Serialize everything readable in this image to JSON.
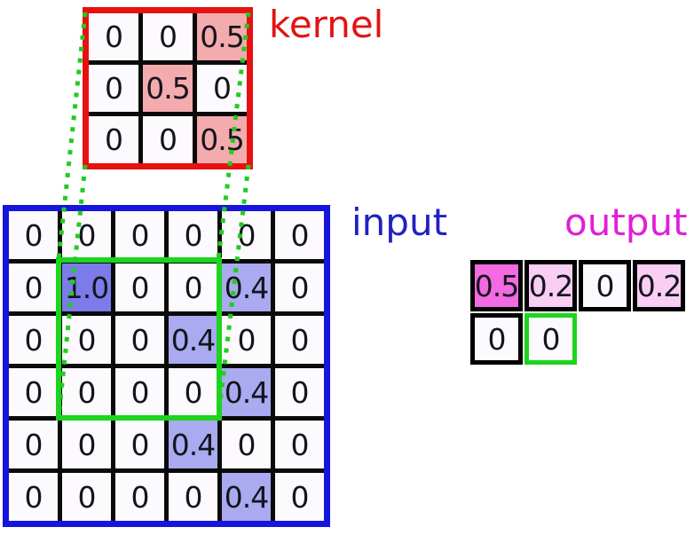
{
  "labels": {
    "kernel": "kernel",
    "input": "input",
    "output": "output"
  },
  "kernel_grid": {
    "rows": [
      [
        "0",
        "0",
        "0.5"
      ],
      [
        "0",
        "0.5",
        "0"
      ],
      [
        "0",
        "0",
        "0.5"
      ]
    ]
  },
  "input_grid": {
    "rows": [
      [
        "0",
        "0",
        "0",
        "0",
        "0",
        "0"
      ],
      [
        "0",
        "1.0",
        "0",
        "0",
        "0.4",
        "0"
      ],
      [
        "0",
        "0",
        "0",
        "0.4",
        "0",
        "0"
      ],
      [
        "0",
        "0",
        "0",
        "0",
        "0.4",
        "0"
      ],
      [
        "0",
        "0",
        "0",
        "0.4",
        "0",
        "0"
      ],
      [
        "0",
        "0",
        "0",
        "0",
        "0.4",
        "0"
      ]
    ]
  },
  "output_grid": {
    "rows": [
      [
        "0.5",
        "0.2",
        "0",
        "0.2"
      ],
      [
        "0",
        "0"
      ]
    ],
    "highlight_cell": {
      "row": 1,
      "col": 1
    }
  },
  "receptive_field": {
    "row_start": 1,
    "col_start": 1,
    "row_end": 3,
    "col_end": 3
  },
  "colors": {
    "kernel_border": "#e81111",
    "input_border": "#1515dd",
    "output_cell_border": "#000000",
    "highlight_green": "#1dd41e",
    "dotted_line_green": "#22cc22",
    "kernel_label": "#e11414",
    "input_label": "#2121c4",
    "output_label": "#e21ed8",
    "cell_fill_default": "#fcfafc",
    "kernel_fill_by_value": {
      "0.5": "#f4abad"
    },
    "input_fill_by_value": {
      "1.0": "#7b7be9",
      "0.4": "#a9aaef"
    },
    "output_fill_by_value": {
      "0.5": "#f46ae2",
      "0.2": "#f8cef5"
    }
  }
}
